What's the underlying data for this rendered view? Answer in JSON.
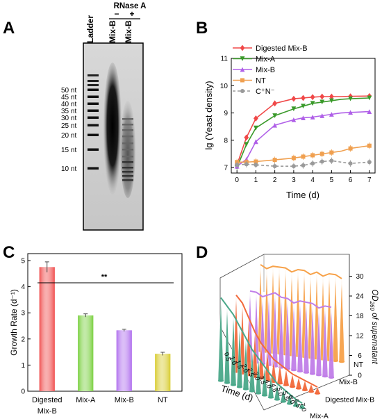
{
  "panels": {
    "a": "A",
    "b": "B",
    "c": "C",
    "d": "D"
  },
  "gel": {
    "enzyme": "RNase A",
    "minus": "−",
    "plus": "+",
    "lanes": [
      "Ladder",
      "Mix-B",
      "Mix-B"
    ],
    "markers": [
      "50 nt",
      "45 nt",
      "40 nt",
      "35 nt",
      "30 nt",
      "25 nt",
      "20 nt",
      "15 nt",
      "10 nt"
    ]
  },
  "chart_data": [
    {
      "type": "line",
      "title": "",
      "xlabel": "Time (d)",
      "ylabel": "lg (Yeast density)",
      "xlim": [
        -0.3,
        7.3
      ],
      "ylim": [
        6.8,
        11
      ],
      "xticks": [
        "0",
        "1",
        "2",
        "3",
        "4",
        "5",
        "6",
        "7"
      ],
      "yticks": [
        "7",
        "8",
        "9",
        "10",
        "11"
      ],
      "legend_position": "top-left",
      "series": [
        {
          "name": "Digested Mix-B",
          "color": "#f04848",
          "marker": "diamond",
          "dashed": false,
          "x": [
            0,
            0.5,
            1,
            2,
            3,
            3.5,
            4,
            4.5,
            5,
            5.5,
            6,
            7
          ],
          "y": [
            7.1,
            8.1,
            8.8,
            9.35,
            9.52,
            9.55,
            9.58,
            9.6,
            9.6,
            9.6,
            9.61,
            9.62
          ]
        },
        {
          "name": "Mix-A",
          "color": "#3a9a2a",
          "marker": "triangle-down",
          "dashed": false,
          "x": [
            0,
            0.5,
            1,
            2,
            3,
            3.5,
            4,
            4.5,
            5,
            5.5,
            6,
            7
          ],
          "y": [
            7.0,
            7.85,
            8.45,
            8.9,
            9.15,
            9.25,
            9.35,
            9.4,
            9.45,
            9.5,
            9.52,
            9.55
          ]
        },
        {
          "name": "Mix-B",
          "color": "#b060e8",
          "marker": "triangle-up",
          "dashed": false,
          "x": [
            0,
            0.5,
            1,
            2,
            3,
            3.5,
            4,
            4.5,
            5,
            5.5,
            6,
            7
          ],
          "y": [
            7.05,
            7.3,
            7.95,
            8.55,
            8.75,
            8.82,
            8.85,
            8.9,
            8.95,
            9.0,
            9.02,
            9.05
          ]
        },
        {
          "name": "NT",
          "color": "#f0a050",
          "marker": "square",
          "dashed": false,
          "x": [
            0,
            0.5,
            1,
            2,
            3,
            3.5,
            4,
            4.5,
            5,
            5.5,
            6,
            7
          ],
          "y": [
            7.2,
            7.2,
            7.22,
            7.28,
            7.35,
            7.4,
            7.45,
            7.5,
            7.55,
            7.6,
            7.7,
            7.8
          ]
        },
        {
          "name": "C⁺N⁻",
          "color": "#9a9a9a",
          "marker": "circle",
          "dashed": true,
          "x": [
            0,
            0.5,
            1,
            2,
            3,
            3.5,
            4,
            4.5,
            5,
            5.5,
            6,
            7
          ],
          "y": [
            7.1,
            7.12,
            7.1,
            7.05,
            7.05,
            7.08,
            7.15,
            7.22,
            7.25,
            7.2,
            7.15,
            7.2
          ]
        }
      ]
    },
    {
      "type": "bar",
      "title": "",
      "xlabel": "",
      "ylabel": "Growth Rate (d⁻¹)",
      "ylim": [
        0,
        5
      ],
      "yticks": [
        "0",
        "1",
        "2",
        "3",
        "4",
        "5"
      ],
      "categories": [
        "Digested Mix-B",
        "Mix-A",
        "Mix-B",
        "NT"
      ],
      "values": [
        4.75,
        2.9,
        2.33,
        1.43
      ],
      "errors": [
        0.2,
        0.06,
        0.04,
        0.06
      ],
      "colors": [
        "#f05050",
        "#7ad040",
        "#b070ee",
        "#d8cc30"
      ],
      "annotation": "**"
    },
    {
      "type": "area",
      "title": "",
      "xlabel": "Time (d)",
      "ylabel": "OD260 of supernatant",
      "ylabel_main": "OD",
      "ylabel_sub": "260",
      "ylabel_rest": " of supernatant",
      "zticks": [
        "0",
        "6",
        "12",
        "18",
        "24",
        "30"
      ],
      "ylim": [
        0,
        30
      ],
      "time_ticks": [
        "0.5",
        "1.0",
        "1.5",
        "2.0",
        "2.5",
        "3.0",
        "3.5",
        "4.0",
        "4.5",
        "5.0",
        "5.5",
        "6.0",
        "6.5",
        "7.0"
      ],
      "series": [
        {
          "name": "NT",
          "color": "#f7a24a",
          "values": [
            27,
            26,
            27,
            27,
            27,
            26,
            27,
            27,
            26,
            27,
            26,
            27,
            27,
            26
          ]
        },
        {
          "name": "Mix-B",
          "color": "#c07ee8",
          "values": [
            22,
            22,
            21,
            22,
            23,
            22,
            22,
            21,
            22,
            22,
            22,
            21,
            22,
            22
          ]
        },
        {
          "name": "Digested Mix-B",
          "color": "#f26a3c",
          "values": [
            24,
            22,
            18,
            14,
            11,
            9,
            7,
            6,
            5,
            4,
            3.5,
            3,
            2.5,
            2
          ]
        },
        {
          "name": "Mix-A",
          "color": "#4aa88a",
          "values": [
            26,
            24,
            22,
            19,
            16,
            13,
            11,
            9,
            7,
            5,
            4,
            3,
            2,
            1.5
          ]
        }
      ]
    }
  ]
}
